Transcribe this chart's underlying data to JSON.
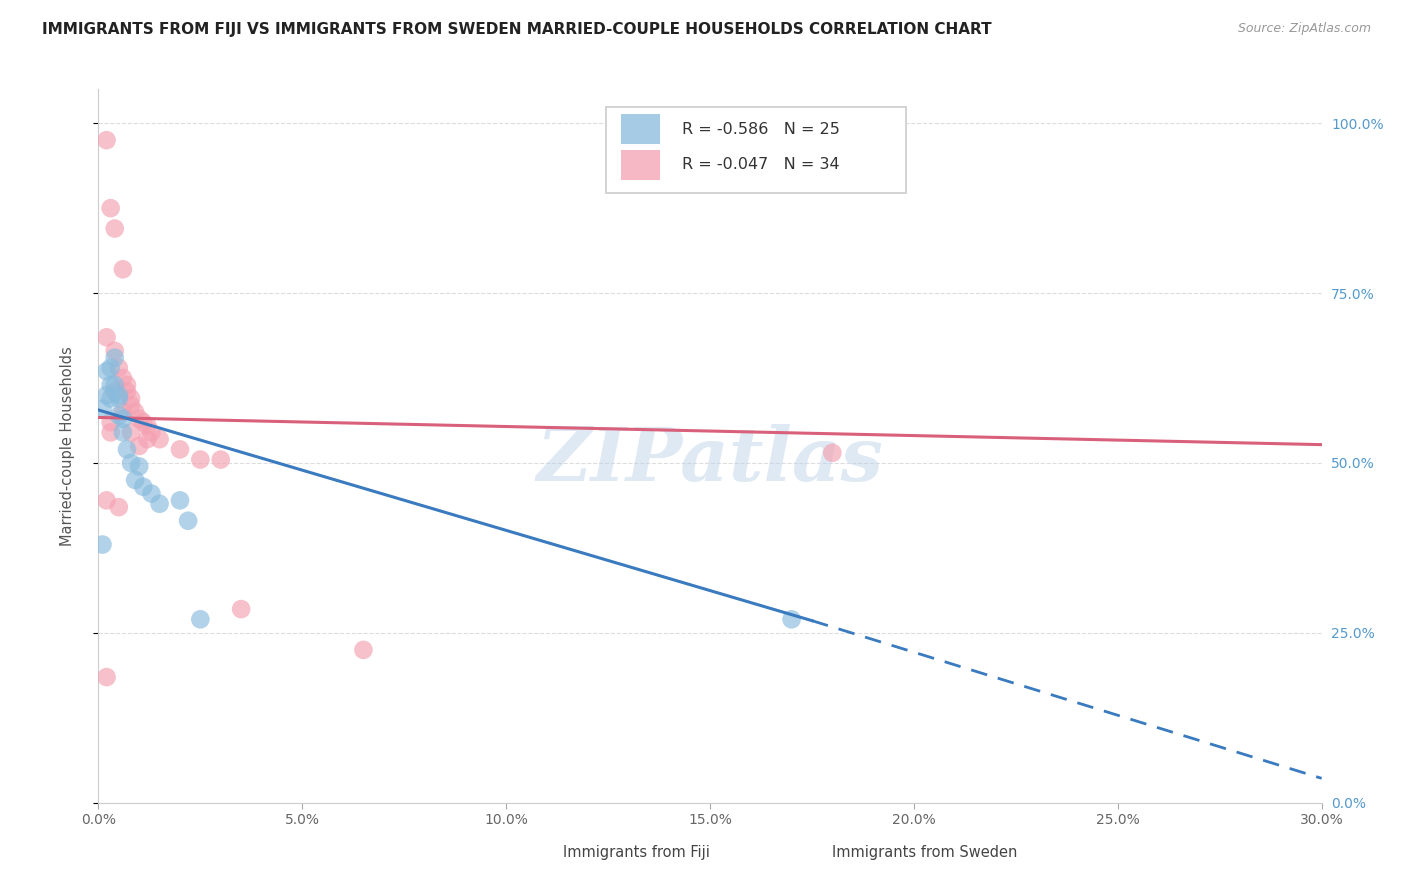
{
  "title": "IMMIGRANTS FROM FIJI VS IMMIGRANTS FROM SWEDEN MARRIED-COUPLE HOUSEHOLDS CORRELATION CHART",
  "source": "Source: ZipAtlas.com",
  "ylabel": "Married-couple Households",
  "legend_fiji": {
    "R": "-0.586",
    "N": "25",
    "color": "#88bbdd"
  },
  "legend_sweden": {
    "R": "-0.047",
    "N": "34",
    "color": "#f4a0b0"
  },
  "watermark": "ZIPatlas",
  "fiji_points": [
    [
      0.001,
      0.58
    ],
    [
      0.002,
      0.635
    ],
    [
      0.002,
      0.6
    ],
    [
      0.003,
      0.64
    ],
    [
      0.003,
      0.615
    ],
    [
      0.003,
      0.595
    ],
    [
      0.004,
      0.655
    ],
    [
      0.004,
      0.615
    ],
    [
      0.005,
      0.595
    ],
    [
      0.005,
      0.6
    ],
    [
      0.005,
      0.57
    ],
    [
      0.006,
      0.565
    ],
    [
      0.006,
      0.545
    ],
    [
      0.007,
      0.52
    ],
    [
      0.008,
      0.5
    ],
    [
      0.009,
      0.475
    ],
    [
      0.01,
      0.495
    ],
    [
      0.011,
      0.465
    ],
    [
      0.013,
      0.455
    ],
    [
      0.015,
      0.44
    ],
    [
      0.02,
      0.445
    ],
    [
      0.022,
      0.415
    ],
    [
      0.025,
      0.27
    ],
    [
      0.17,
      0.27
    ],
    [
      0.001,
      0.38
    ]
  ],
  "sweden_points": [
    [
      0.002,
      0.975
    ],
    [
      0.003,
      0.875
    ],
    [
      0.004,
      0.845
    ],
    [
      0.002,
      0.685
    ],
    [
      0.004,
      0.665
    ],
    [
      0.005,
      0.64
    ],
    [
      0.006,
      0.625
    ],
    [
      0.007,
      0.615
    ],
    [
      0.007,
      0.605
    ],
    [
      0.008,
      0.595
    ],
    [
      0.008,
      0.585
    ],
    [
      0.009,
      0.575
    ],
    [
      0.01,
      0.565
    ],
    [
      0.011,
      0.56
    ],
    [
      0.012,
      0.555
    ],
    [
      0.013,
      0.545
    ],
    [
      0.015,
      0.535
    ],
    [
      0.02,
      0.52
    ],
    [
      0.002,
      0.445
    ],
    [
      0.005,
      0.435
    ],
    [
      0.03,
      0.505
    ],
    [
      0.035,
      0.285
    ],
    [
      0.065,
      0.225
    ],
    [
      0.002,
      0.185
    ],
    [
      0.01,
      0.525
    ],
    [
      0.012,
      0.535
    ],
    [
      0.003,
      0.56
    ],
    [
      0.004,
      0.605
    ],
    [
      0.006,
      0.575
    ],
    [
      0.008,
      0.545
    ],
    [
      0.18,
      0.515
    ],
    [
      0.025,
      0.505
    ],
    [
      0.006,
      0.785
    ],
    [
      0.003,
      0.545
    ]
  ],
  "fiji_line_solid": {
    "x0": 0.0,
    "y0": 0.578,
    "x1": 0.175,
    "y1": 0.268
  },
  "fiji_line_dashed": {
    "x0": 0.175,
    "y0": 0.268,
    "x1": 0.3,
    "y1": 0.036
  },
  "sweden_line": {
    "x0": 0.0,
    "y0": 0.567,
    "x1": 0.3,
    "y1": 0.527
  },
  "xlim": [
    0.0,
    0.3
  ],
  "ylim": [
    0.0,
    1.05
  ],
  "yticks": [
    0.0,
    0.25,
    0.5,
    0.75,
    1.0
  ],
  "xticks": [
    0.0,
    0.05,
    0.1,
    0.15,
    0.2,
    0.25,
    0.3
  ],
  "fiji_color": "#88bbdd",
  "sweden_color": "#f4a0b0",
  "fiji_line_color": "#3a7abf",
  "sweden_line_color": "#d9607a",
  "bg_color": "#ffffff",
  "grid_color": "#dddddd",
  "right_axis_color": "#5599cc",
  "title_fontsize": 11,
  "source_fontsize": 9
}
